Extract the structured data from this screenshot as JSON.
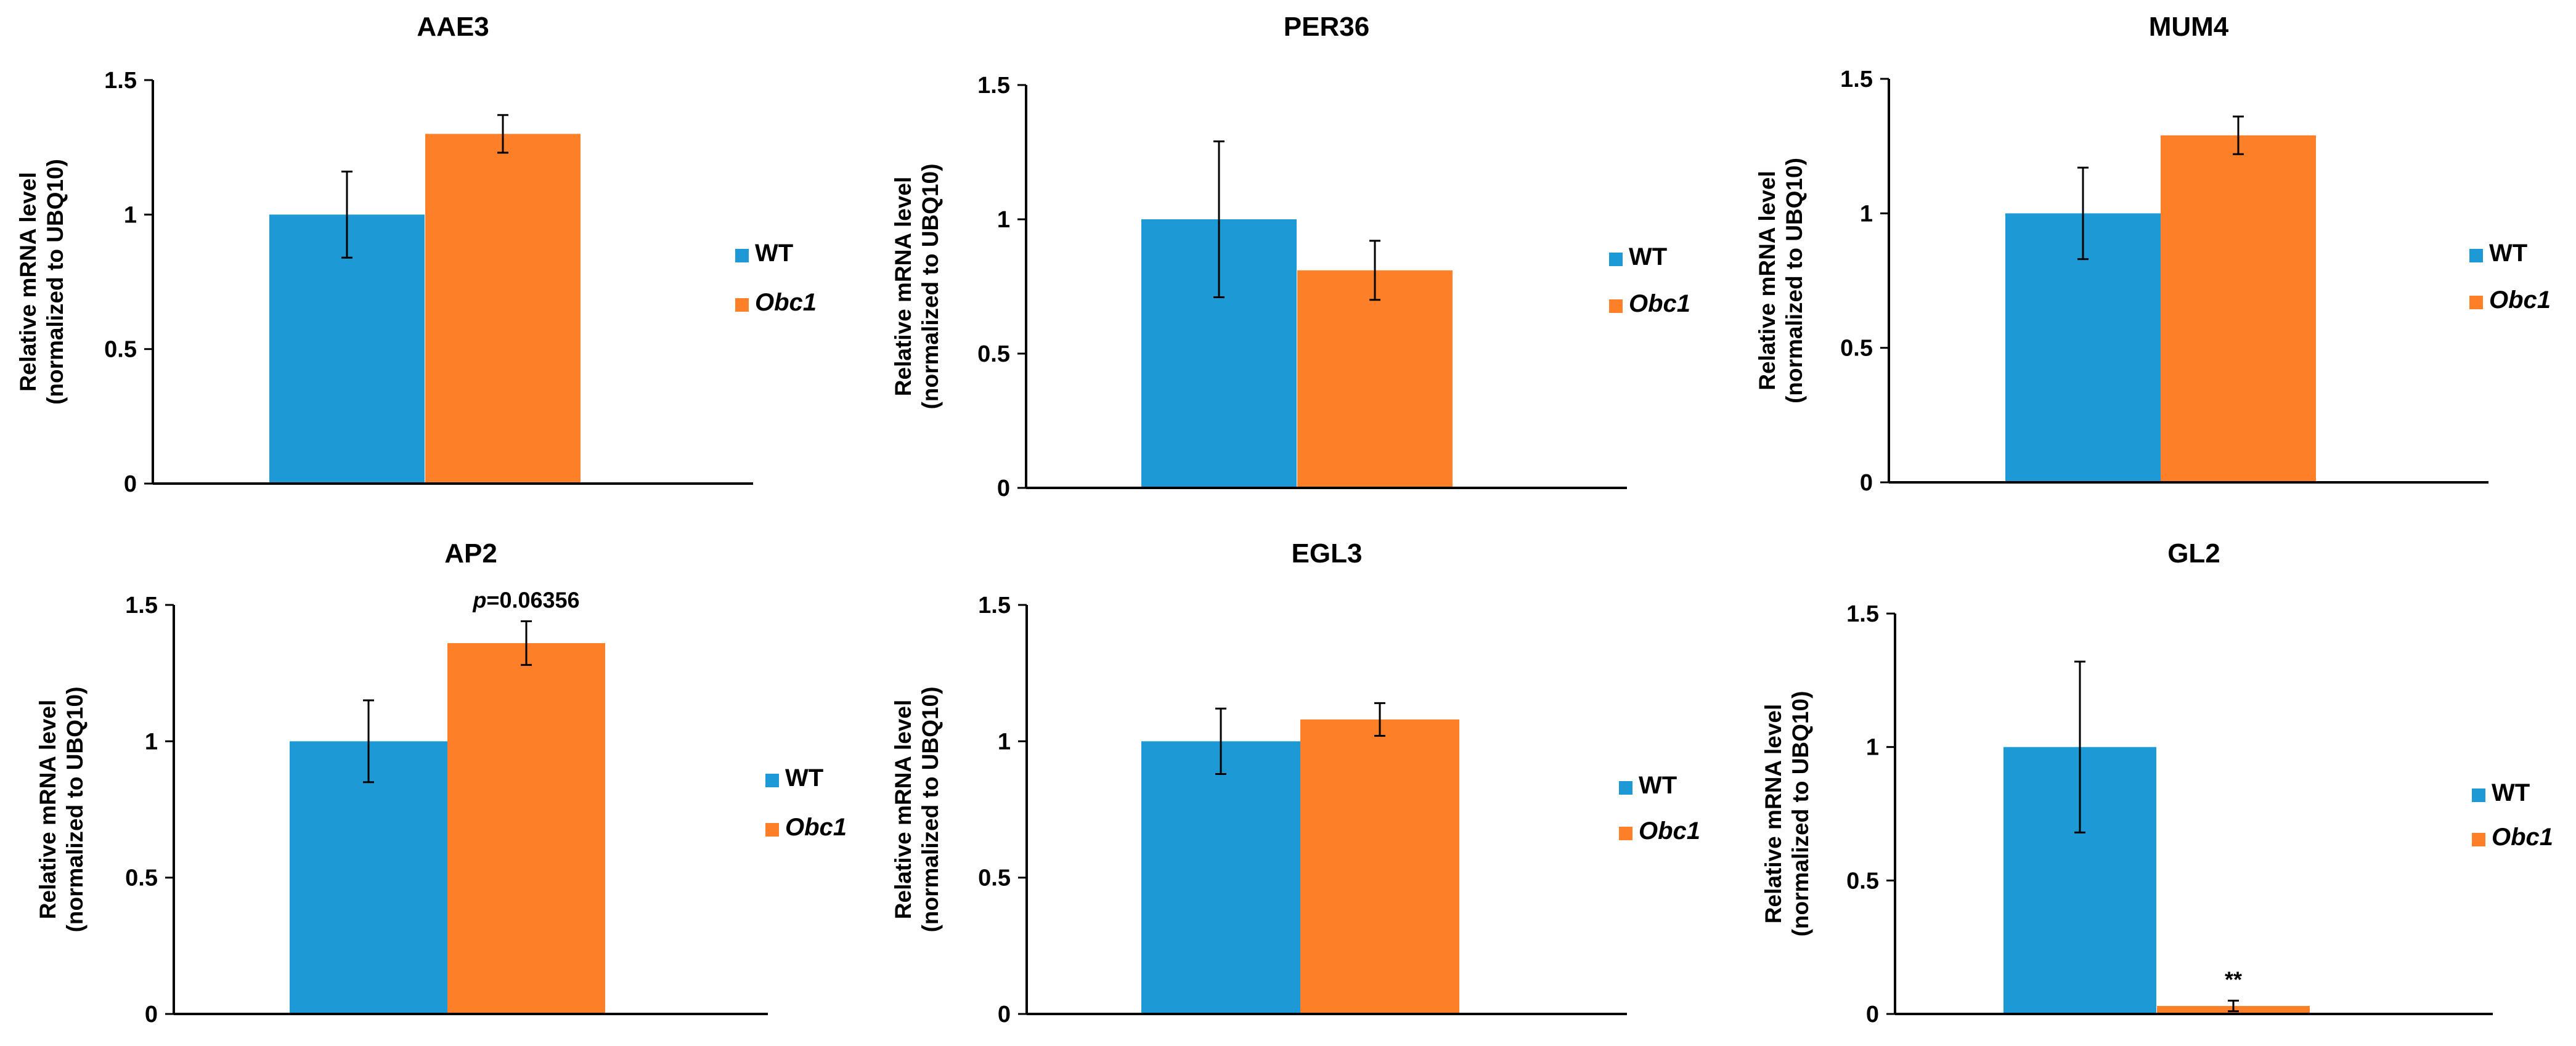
{
  "series_names": [
    "WT",
    "Obc1"
  ],
  "colors": {
    "WT": "#1d9ad6",
    "Obc1": "#fd7f28"
  },
  "ylabel_line1": "Relative mRNA level",
  "ylabel_line2": "(normalized to UBQ10)",
  "chart_data": [
    {
      "type": "bar",
      "title": "AAE3",
      "ylim": [
        0,
        1.5
      ],
      "yticks": [
        "0",
        "0.5",
        "1",
        "1.5"
      ],
      "series": [
        {
          "name": "WT",
          "values": [
            1.0
          ],
          "error": [
            0.16
          ]
        },
        {
          "name": "Obc1",
          "values": [
            1.3
          ],
          "error": [
            0.07
          ]
        }
      ],
      "annotation": null
    },
    {
      "type": "bar",
      "title": "PER36",
      "ylim": [
        0,
        1.5
      ],
      "yticks": [
        "0",
        "0.5",
        "1",
        "1.5"
      ],
      "series": [
        {
          "name": "WT",
          "values": [
            1.0
          ],
          "error": [
            0.29
          ]
        },
        {
          "name": "Obc1",
          "values": [
            0.81
          ],
          "error": [
            0.11
          ]
        }
      ],
      "annotation": null
    },
    {
      "type": "bar",
      "title": "MUM4",
      "ylim": [
        0,
        1.5
      ],
      "yticks": [
        "0",
        "0.5",
        "1",
        "1.5"
      ],
      "series": [
        {
          "name": "WT",
          "values": [
            1.0
          ],
          "error": [
            0.17
          ]
        },
        {
          "name": "Obc1",
          "values": [
            1.29
          ],
          "error": [
            0.07
          ]
        }
      ],
      "annotation": null
    },
    {
      "type": "bar",
      "title": "AP2",
      "ylim": [
        0,
        1.5
      ],
      "yticks": [
        "0",
        "0.5",
        "1",
        "1.5"
      ],
      "series": [
        {
          "name": "WT",
          "values": [
            1.0
          ],
          "error": [
            0.15
          ]
        },
        {
          "name": "Obc1",
          "values": [
            1.36
          ],
          "error": [
            0.08
          ]
        }
      ],
      "annotation": {
        "italic_prefix": "p",
        "rest": "=0.06356"
      }
    },
    {
      "type": "bar",
      "title": "EGL3",
      "ylim": [
        0,
        1.5
      ],
      "yticks": [
        "0",
        "0.5",
        "1",
        "1.5"
      ],
      "series": [
        {
          "name": "WT",
          "values": [
            1.0
          ],
          "error": [
            0.12
          ]
        },
        {
          "name": "Obc1",
          "values": [
            1.08
          ],
          "error": [
            0.06
          ]
        }
      ],
      "annotation": null
    },
    {
      "type": "bar",
      "title": "GL2",
      "ylim": [
        0,
        1.5
      ],
      "yticks": [
        "0",
        "0.5",
        "1",
        "1.5"
      ],
      "series": [
        {
          "name": "WT",
          "values": [
            1.0
          ],
          "error": [
            0.32
          ]
        },
        {
          "name": "Obc1",
          "values": [
            0.03
          ],
          "error": [
            0.02
          ]
        }
      ],
      "annotation": {
        "italic_prefix": "",
        "rest": "**"
      }
    }
  ]
}
